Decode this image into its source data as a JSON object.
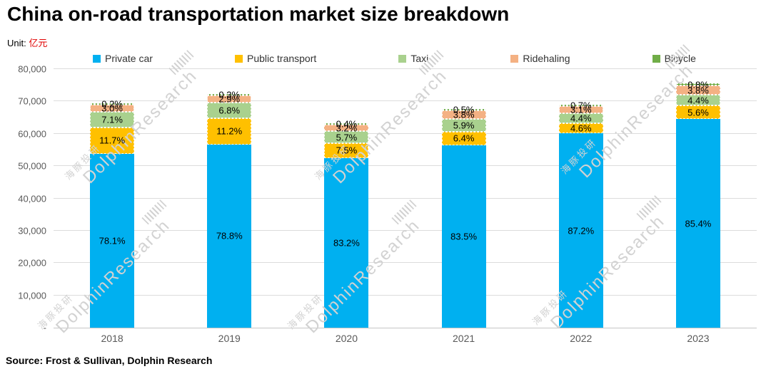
{
  "title": "China on-road transportation market size breakdown",
  "unit_label": "Unit:",
  "unit_value": "亿元",
  "source": "Source: Frost & Sullivan, Dolphin Research",
  "watermark": {
    "cn": "海豚投研",
    "en": "DolphinResearch"
  },
  "chart_data": {
    "type": "bar",
    "subtype": "stacked-percent-labels",
    "title": "China on-road transportation market size breakdown",
    "unit": "亿元",
    "categories": [
      "2018",
      "2019",
      "2020",
      "2021",
      "2022",
      "2023"
    ],
    "totals": [
      69000,
      72000,
      63000,
      67500,
      69000,
      75500
    ],
    "ylim": [
      0,
      80000
    ],
    "ytick_step": 10000,
    "ytick_labels": [
      "-",
      "10,000",
      "20,000",
      "30,000",
      "40,000",
      "50,000",
      "60,000",
      "70,000",
      "80,000"
    ],
    "grid": true,
    "legend_position": "top",
    "series": [
      {
        "name": "Private car",
        "color": "#00B0F0",
        "values_pct": [
          78.1,
          78.8,
          83.2,
          83.5,
          87.2,
          85.4
        ]
      },
      {
        "name": "Public transport",
        "color": "#FFC000",
        "values_pct": [
          11.7,
          11.2,
          7.5,
          6.4,
          4.6,
          5.6
        ]
      },
      {
        "name": "Taxi",
        "color": "#A9D18E",
        "values_pct": [
          7.1,
          6.8,
          5.7,
          5.9,
          4.4,
          4.4
        ]
      },
      {
        "name": "Ridehaling",
        "color": "#F4B183",
        "values_pct": [
          3.0,
          2.9,
          3.2,
          3.8,
          3.1,
          3.8
        ]
      },
      {
        "name": "Bicycle",
        "color": "#70AD47",
        "values_pct": [
          0.2,
          0.3,
          0.4,
          0.5,
          0.7,
          0.8
        ]
      }
    ]
  }
}
